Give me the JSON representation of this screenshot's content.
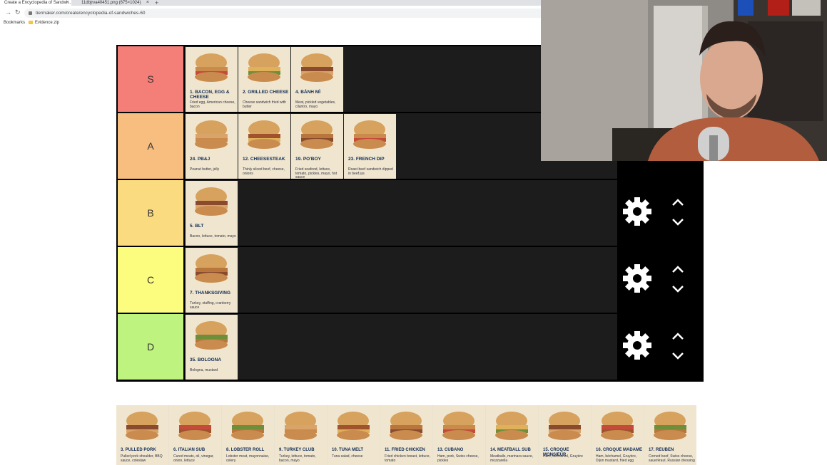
{
  "browser": {
    "tabs": [
      {
        "title": "Create a Encyclopedia of Sandwi...",
        "active": true
      },
      {
        "title": "11dbjrva40451.png (675×1024)",
        "active": false
      }
    ],
    "address": "tiermaker.com/create/encyclopedia-of-sandwiches-60",
    "bookmarks": [
      {
        "label": "Bookmarks"
      },
      {
        "label": "Evidence.zip"
      }
    ]
  },
  "tiers": [
    {
      "label": "S",
      "color": "#f47f79",
      "items": [
        {
          "name": "1. Bacon, Egg & Cheese",
          "desc": "Fried egg, American cheese, bacon"
        },
        {
          "name": "2. Grilled Cheese",
          "desc": "Cheese sandwich fried with butter"
        },
        {
          "name": "4. Bánh Mì",
          "desc": "Meat, pickled vegetables, cilantro, mayo"
        }
      ]
    },
    {
      "label": "A",
      "color": "#f7be7f",
      "items": [
        {
          "name": "24. PB&J",
          "desc": "Peanut butter, jelly"
        },
        {
          "name": "12. Cheesesteak",
          "desc": "Thinly sliced beef, cheese, onions"
        },
        {
          "name": "19. Po'Boy",
          "desc": "Fried seafood, lettuce, tomato, pickles, mayo, hot sauce"
        },
        {
          "name": "23. French Dip",
          "desc": "Roast beef sandwich dipped in beef jus"
        }
      ]
    },
    {
      "label": "B",
      "color": "#fbdb80",
      "items": [
        {
          "name": "5. BLT",
          "desc": "Bacon, lettuce, tomato, mayo"
        }
      ]
    },
    {
      "label": "C",
      "color": "#fcfd7f",
      "items": [
        {
          "name": "7. Thanksgiving",
          "desc": "Turkey, stuffing, cranberry sauce"
        }
      ]
    },
    {
      "label": "D",
      "color": "#bff37f",
      "items": [
        {
          "name": "35. Bologna",
          "desc": "Bologna, mustard"
        }
      ]
    }
  ],
  "bank": [
    {
      "name": "3. Pulled Pork",
      "desc": "Pulled pork shoulder, BBQ sauce, coleslaw"
    },
    {
      "name": "6. Italian Sub",
      "desc": "Cured meats, oil, vinegar, onion, lettuce"
    },
    {
      "name": "8. Lobster Roll",
      "desc": "Lobster meat, mayonnaise, celery"
    },
    {
      "name": "9. Turkey Club",
      "desc": "Turkey, lettuce, tomato, bacon, mayo"
    },
    {
      "name": "10. Tuna Melt",
      "desc": "Tuna salad, cheese"
    },
    {
      "name": "11. Fried Chicken",
      "desc": "Fried chicken breast, lettuce, tomato"
    },
    {
      "name": "13. Cubano",
      "desc": "Ham, pork, Swiss cheese, pickles"
    },
    {
      "name": "14. Meatball Sub",
      "desc": "Meatballs, marinara sauce, mozzarella"
    },
    {
      "name": "15. Croque Monsieur",
      "desc": "Ham, béchamel, Gruyère"
    },
    {
      "name": "16. Croque Madame",
      "desc": "Ham, béchamel, Gruyère, Dijon mustard, fried egg"
    },
    {
      "name": "17. Reuben",
      "desc": "Corned beef, Swiss cheese, sauerkraut, Russian dressing"
    }
  ],
  "icons": {
    "settings": "gear-icon",
    "move_up": "chevron-up-icon",
    "move_down": "chevron-down-icon"
  }
}
